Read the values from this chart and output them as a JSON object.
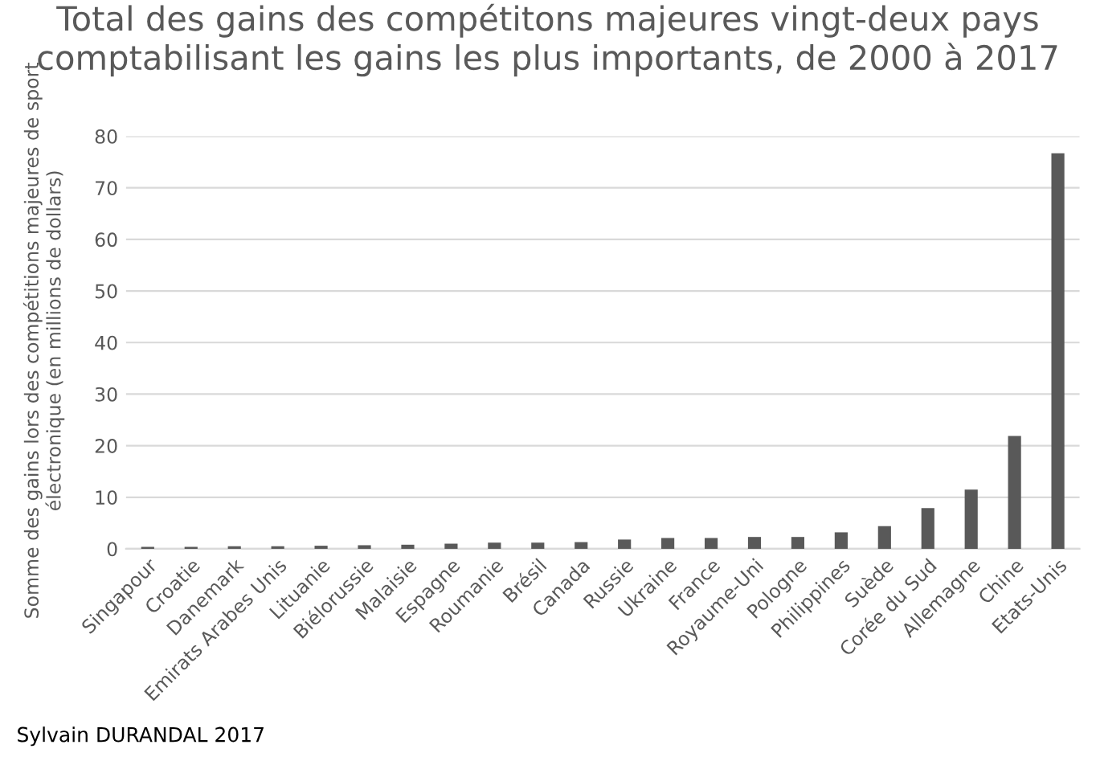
{
  "chart_data": {
    "type": "bar",
    "title": "Total des gains des compétitons majeures vingt-deux pays comptabilisant les gains les plus importants, de 2000 à 2017",
    "ylabel": "Somme des gains lors des compétitions majeures de sport électronique (en millions de dollars)",
    "categories": [
      "Singapour",
      "Croatie",
      "Danemark",
      "Emirats Arabes Unis",
      "Lituanie",
      "Biélorussie",
      "Malaisie",
      "Espagne",
      "Roumanie",
      "Brésil",
      "Canada",
      "Russie",
      "Ukraine",
      "France",
      "Royaume-Uni",
      "Pologne",
      "Philippines",
      "Suède",
      "Corée du Sud",
      "Allemagne",
      "Chine",
      "Etats-Unis"
    ],
    "values": [
      0.4,
      0.4,
      0.5,
      0.5,
      0.6,
      0.7,
      0.8,
      1.0,
      1.2,
      1.2,
      1.3,
      1.8,
      2.1,
      2.1,
      2.3,
      2.3,
      3.2,
      4.4,
      7.9,
      11.5,
      21.9,
      76.7
    ],
    "color": "#595959",
    "ylim": [
      0,
      80
    ],
    "yticks": [
      0,
      10,
      20,
      30,
      40,
      50,
      60,
      70,
      80
    ],
    "grid": "y",
    "annotations": [
      "Sylvain DURANDAL 2017"
    ]
  }
}
